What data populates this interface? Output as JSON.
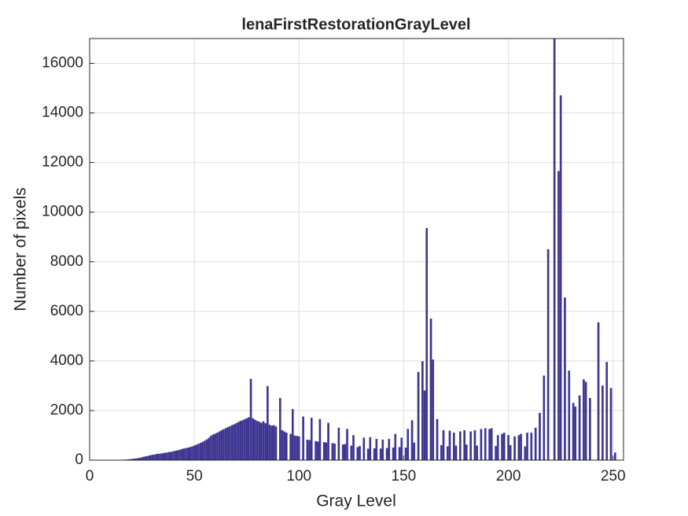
{
  "chart_data": {
    "type": "bar",
    "title": "lenaFirstRestorationGrayLevel",
    "x_label": "Gray Level",
    "y_label": "Number of pixels",
    "color": "#3d3590",
    "grid": true,
    "xlim": [
      0,
      255
    ],
    "ylim": [
      0,
      17000
    ],
    "xticks": [
      0,
      50,
      100,
      150,
      200,
      250
    ],
    "yticks": [
      0,
      2000,
      4000,
      6000,
      8000,
      10000,
      12000,
      14000,
      16000
    ],
    "x": [
      0,
      1,
      2,
      3,
      4,
      5,
      6,
      7,
      8,
      9,
      10,
      11,
      12,
      13,
      14,
      15,
      16,
      17,
      18,
      19,
      20,
      21,
      22,
      23,
      24,
      25,
      26,
      27,
      28,
      29,
      30,
      31,
      32,
      33,
      34,
      35,
      36,
      37,
      38,
      39,
      40,
      41,
      42,
      43,
      44,
      45,
      46,
      47,
      48,
      49,
      50,
      51,
      52,
      53,
      54,
      55,
      56,
      57,
      58,
      59,
      60,
      61,
      62,
      63,
      64,
      65,
      66,
      67,
      68,
      69,
      70,
      71,
      72,
      73,
      74,
      75,
      76,
      77,
      78,
      79,
      80,
      81,
      82,
      83,
      84,
      85,
      86,
      87,
      88,
      89,
      90,
      91,
      92,
      93,
      94,
      95,
      96,
      97,
      98,
      99,
      100,
      101,
      102,
      103,
      104,
      105,
      106,
      107,
      108,
      109,
      110,
      111,
      112,
      113,
      114,
      115,
      116,
      117,
      118,
      119,
      120,
      121,
      122,
      123,
      124,
      125,
      126,
      127,
      128,
      129,
      130,
      131,
      132,
      133,
      134,
      135,
      136,
      137,
      138,
      139,
      140,
      141,
      142,
      143,
      144,
      145,
      146,
      147,
      148,
      149,
      150,
      151,
      152,
      153,
      154,
      155,
      156,
      157,
      158,
      159,
      160,
      161,
      162,
      163,
      164,
      165,
      166,
      167,
      168,
      169,
      170,
      171,
      172,
      173,
      174,
      175,
      176,
      177,
      178,
      179,
      180,
      181,
      182,
      183,
      184,
      185,
      186,
      187,
      188,
      189,
      190,
      191,
      192,
      193,
      194,
      195,
      196,
      197,
      198,
      199,
      200,
      201,
      202,
      203,
      204,
      205,
      206,
      207,
      208,
      209,
      210,
      211,
      212,
      213,
      214,
      215,
      216,
      217,
      218,
      219,
      220,
      221,
      222,
      223,
      224,
      225,
      226,
      227,
      228,
      229,
      230,
      231,
      232,
      233,
      234,
      235,
      236,
      237,
      238,
      239,
      240,
      241,
      242,
      243,
      244,
      245,
      246,
      247,
      248,
      249,
      250,
      251,
      252,
      253,
      254,
      255
    ],
    "values": [
      0,
      0,
      0,
      0,
      0,
      0,
      0,
      0,
      0,
      0,
      0,
      0,
      0,
      0,
      0,
      5,
      10,
      15,
      20,
      30,
      40,
      50,
      60,
      70,
      90,
      110,
      130,
      150,
      170,
      190,
      210,
      220,
      240,
      250,
      260,
      270,
      290,
      300,
      320,
      330,
      350,
      370,
      390,
      410,
      440,
      460,
      480,
      500,
      520,
      550,
      580,
      620,
      650,
      690,
      730,
      780,
      830,
      900,
      980,
      1030,
      1060,
      1100,
      1150,
      1200,
      1240,
      1280,
      1320,
      1360,
      1400,
      1440,
      1480,
      1530,
      1570,
      1600,
      1640,
      1680,
      1720,
      3270,
      1680,
      1620,
      1580,
      1540,
      1500,
      1560,
      1480,
      2980,
      1420,
      1380,
      1400,
      1350,
      0,
      2500,
      1200,
      1150,
      1100,
      0,
      1050,
      2050,
      980,
      970,
      950,
      0,
      1750,
      0,
      820,
      800,
      1700,
      0,
      760,
      740,
      1650,
      0,
      720,
      700,
      1500,
      0,
      680,
      660,
      0,
      1300,
      0,
      620,
      640,
      1250,
      0,
      580,
      1000,
      0,
      520,
      560,
      0,
      900,
      0,
      450,
      920,
      0,
      470,
      850,
      0,
      460,
      820,
      0,
      480,
      850,
      0,
      500,
      1050,
      0,
      520,
      900,
      0,
      500,
      1250,
      0,
      1600,
      700,
      0,
      3550,
      0,
      3980,
      2800,
      9350,
      0,
      5700,
      4050,
      0,
      1650,
      0,
      600,
      1200,
      0,
      550,
      1180,
      0,
      1100,
      580,
      0,
      1150,
      0,
      1200,
      620,
      0,
      1150,
      0,
      1200,
      580,
      0,
      1250,
      0,
      1280,
      0,
      1250,
      1280,
      0,
      560,
      1000,
      0,
      1050,
      1100,
      0,
      1000,
      600,
      0,
      950,
      0,
      1000,
      1050,
      0,
      550,
      1100,
      0,
      1100,
      0,
      1300,
      0,
      1900,
      0,
      3400,
      0,
      8500,
      0,
      0,
      17000,
      0,
      11650,
      14700,
      0,
      6550,
      0,
      3600,
      0,
      2300,
      2150,
      0,
      2600,
      0,
      3250,
      3150,
      0,
      2500,
      0,
      0,
      0,
      5550,
      0,
      3000,
      0,
      3950,
      0,
      2900,
      0,
      300,
      0,
      0,
      0,
      0
    ]
  }
}
